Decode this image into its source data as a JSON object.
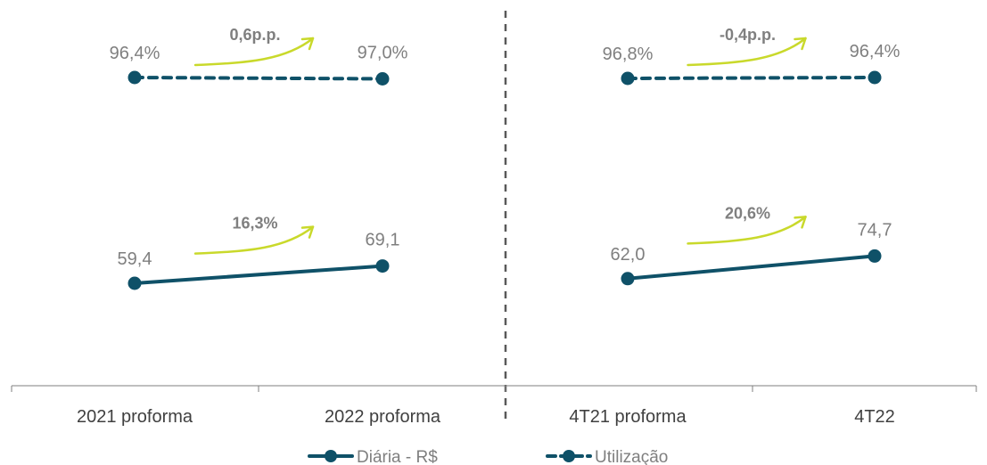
{
  "chart_data": {
    "type": "line",
    "categories": [
      "2021 proforma",
      "2022 proforma",
      "4T21 proforma",
      "4T22"
    ],
    "groups": [
      [
        0,
        1
      ],
      [
        2,
        3
      ]
    ],
    "series": [
      {
        "name": "Diária - R$",
        "style": "solid",
        "values": [
          59.4,
          69.1,
          62.0,
          74.7
        ],
        "labels": [
          "59,4",
          "69,1",
          "62,0",
          "74,7"
        ]
      },
      {
        "name": "Utilização",
        "style": "dashed",
        "values": [
          96.4,
          97.0,
          96.8,
          96.4
        ],
        "labels": [
          "96,4%",
          "97,0%",
          "96,8%",
          "96,4%"
        ]
      }
    ],
    "annotations": [
      {
        "series": 1,
        "group": 0,
        "text": "0,6p.p."
      },
      {
        "series": 1,
        "group": 1,
        "text": "-0,4p.p."
      },
      {
        "series": 0,
        "group": 0,
        "text": "16,3%"
      },
      {
        "series": 0,
        "group": 1,
        "text": "20,6%"
      }
    ],
    "legend_position": "bottom",
    "colors": {
      "line": "#0f5168",
      "arrow": "#c9d92b",
      "label": "#7f7f7f",
      "axis": "#7f7f7f",
      "divider": "#595959"
    }
  }
}
